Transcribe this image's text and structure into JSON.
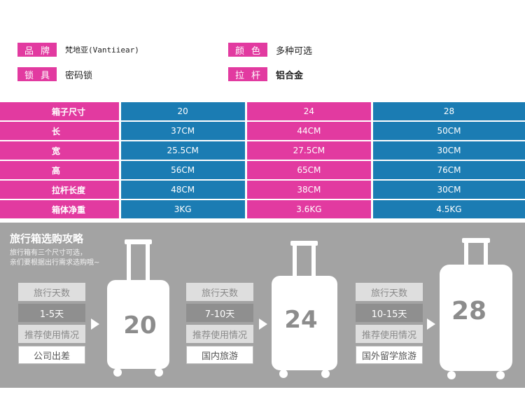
{
  "specs": [
    {
      "label": "品牌",
      "value": "梵地亚(Vantiiear)"
    },
    {
      "label": "颜色",
      "value": "多种可选"
    },
    {
      "label": "锁具",
      "value": "密码锁"
    },
    {
      "label": "拉杆",
      "value": "铝合金"
    }
  ],
  "table": {
    "header": {
      "label": "箱子尺寸",
      "cols": [
        "20",
        "24",
        "28"
      ]
    },
    "rows": [
      {
        "label": "长",
        "vals": [
          "37CM",
          "44CM",
          "50CM"
        ]
      },
      {
        "label": "宽",
        "vals": [
          "25.5CM",
          "27.5CM",
          "30CM"
        ]
      },
      {
        "label": "高",
        "vals": [
          "56CM",
          "65CM",
          "76CM"
        ]
      },
      {
        "label": "拉杆长度",
        "vals": [
          "48CM",
          "38CM",
          "30CM"
        ]
      },
      {
        "label": "箱体净重",
        "vals": [
          "3KG",
          "3.6KG",
          "4.5KG"
        ]
      }
    ]
  },
  "guide": {
    "title": "旅行箱选购攻略",
    "desc1": "旅行箱有三个尺寸可选，",
    "desc2": "亲们要根据出行需求选购哦~",
    "cards": [
      {
        "days_label": "旅行天数",
        "days": "1-5天",
        "use_label": "推荐使用情况",
        "use": "公司出差",
        "size": "20"
      },
      {
        "days_label": "旅行天数",
        "days": "7-10天",
        "use_label": "推荐使用情况",
        "use": "国内旅游",
        "size": "24"
      },
      {
        "days_label": "旅行天数",
        "days": "10-15天",
        "use_label": "推荐使用情况",
        "use": "国外留学旅游",
        "size": "28"
      }
    ]
  }
}
